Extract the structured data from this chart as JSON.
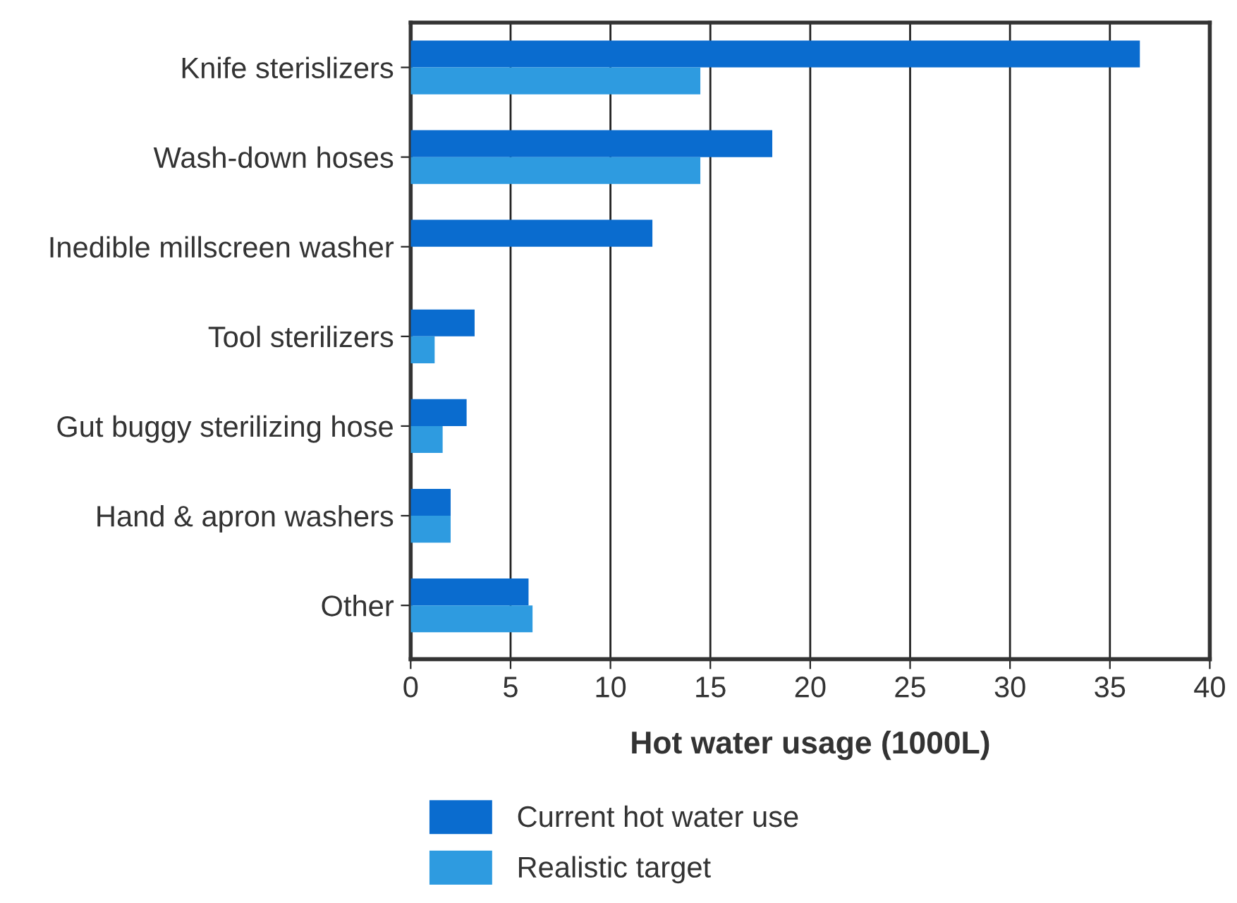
{
  "chart_data": {
    "type": "bar",
    "orientation": "horizontal",
    "xlabel": "Hot water usage (1000L)",
    "categories": [
      "Knife sterislizers",
      "Wash-down hoses",
      "Inedible millscreen washer",
      "Tool sterilizers",
      "Gut buggy sterilizing hose",
      "Hand & apron washers",
      "Other"
    ],
    "series": [
      {
        "name": "Current hot water use",
        "color": "#0a6ccf",
        "values": [
          36.5,
          18.1,
          12.1,
          3.2,
          2.8,
          2.0,
          5.9
        ]
      },
      {
        "name": "Realistic target",
        "color": "#2e9be0",
        "values": [
          14.5,
          14.5,
          null,
          1.2,
          1.6,
          2.0,
          6.1
        ]
      }
    ],
    "xlim": [
      0,
      40
    ],
    "xticks": [
      0,
      5,
      10,
      15,
      20,
      25,
      30,
      35,
      40
    ],
    "grid": "x",
    "legend": "bottom"
  }
}
